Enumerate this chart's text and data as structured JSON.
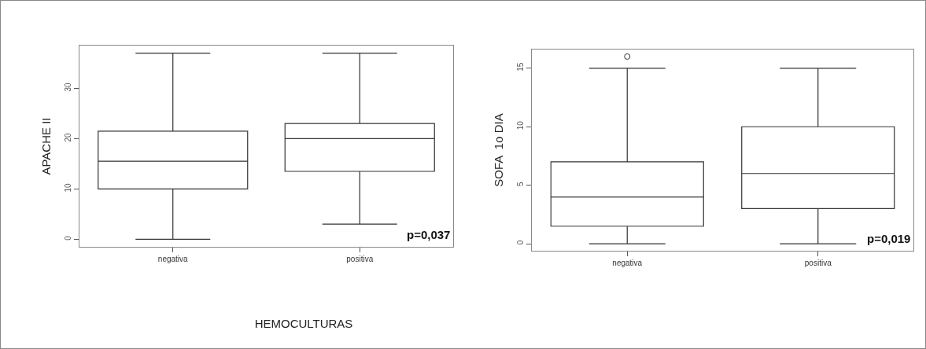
{
  "chart_data": [
    {
      "type": "box",
      "ylabel": "APACHE II",
      "xlabel": "HEMOCULTURAS",
      "categories": [
        "negativa",
        "positiva"
      ],
      "color": "#333333",
      "boxes": [
        {
          "low": 0,
          "q1": 10,
          "median": 15.5,
          "q3": 21.5,
          "high": 37
        },
        {
          "low": 3,
          "q1": 13.5,
          "median": 20,
          "q3": 23,
          "high": 37
        }
      ],
      "ylim": [
        -1.5,
        38.5
      ],
      "yticks": [
        0,
        10,
        20,
        30
      ],
      "annotations": [
        "p=0,037"
      ]
    },
    {
      "type": "box",
      "ylabel": "SOFA  1o DIA",
      "categories": [
        "negativa",
        "positiva"
      ],
      "color": "#333333",
      "boxes": [
        {
          "low": 0,
          "q1": 1.5,
          "median": 4,
          "q3": 7,
          "high": 15,
          "outliers": [
            16
          ]
        },
        {
          "low": 0,
          "q1": 3,
          "median": 6,
          "q3": 10,
          "high": 15
        }
      ],
      "ylim": [
        -0.6,
        16.6
      ],
      "yticks": [
        0,
        5,
        10,
        15
      ],
      "annotations": [
        "p=0,019"
      ]
    }
  ]
}
